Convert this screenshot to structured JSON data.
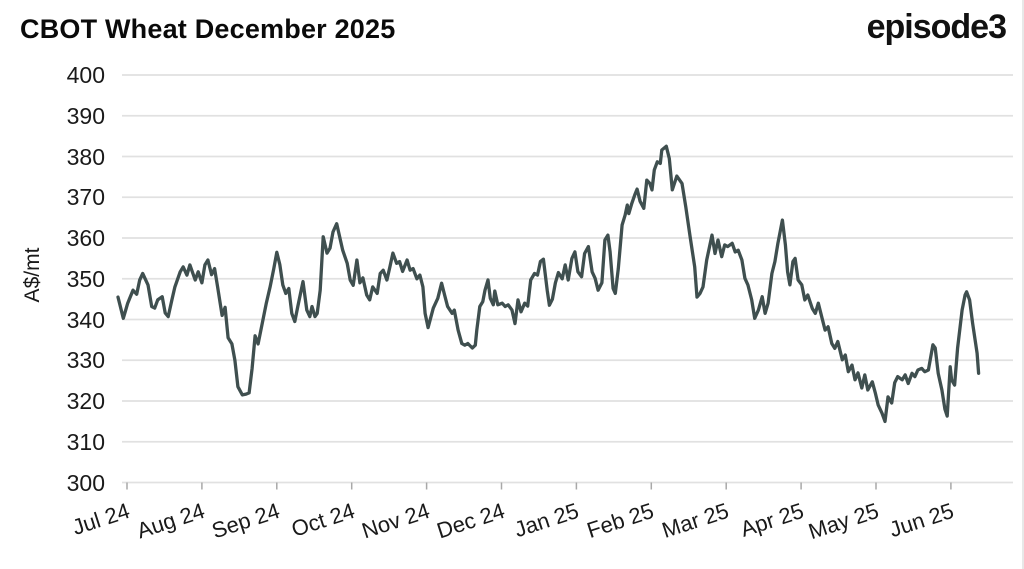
{
  "brand": "episode3",
  "chart_data": {
    "type": "line",
    "title": "CBOT Wheat December 2025",
    "ylabel": "A$/mt",
    "ylim": [
      300,
      400
    ],
    "yticks": [
      400,
      390,
      380,
      370,
      360,
      350,
      340,
      330,
      320,
      310,
      300
    ],
    "x_tick_labels": [
      "Jul 24",
      "Aug 24",
      "Sep 24",
      "Oct 24",
      "Nov 24",
      "Dec 24",
      "Jan 25",
      "Feb 25",
      "Mar 25",
      "Apr 25",
      "May 25",
      "Jun 25"
    ],
    "x_unit": "months from Jul 2024 tick",
    "grid": "horizontal",
    "legend": "none",
    "line_color": "#3f4f4f",
    "grid_color": "#e1e1e1",
    "tick_color": "#a8a8a8",
    "text_color": "#1a1a1a",
    "series": [
      {
        "name": "CBOT Wheat December 2025 (A$/mt)",
        "points": [
          [
            -0.12,
            345.5
          ],
          [
            -0.05,
            340.3
          ],
          [
            0.01,
            344.0
          ],
          [
            0.08,
            347.2
          ],
          [
            0.13,
            346.2
          ],
          [
            0.17,
            349.7
          ],
          [
            0.21,
            351.3
          ],
          [
            0.28,
            348.5
          ],
          [
            0.33,
            343.2
          ],
          [
            0.37,
            342.8
          ],
          [
            0.41,
            344.8
          ],
          [
            0.47,
            345.6
          ],
          [
            0.51,
            341.6
          ],
          [
            0.55,
            340.7
          ],
          [
            0.6,
            344.8
          ],
          [
            0.64,
            348.0
          ],
          [
            0.71,
            351.7
          ],
          [
            0.75,
            352.9
          ],
          [
            0.8,
            350.9
          ],
          [
            0.84,
            353.4
          ],
          [
            0.91,
            349.7
          ],
          [
            0.95,
            351.7
          ],
          [
            1.0,
            349.0
          ],
          [
            1.04,
            353.4
          ],
          [
            1.08,
            354.6
          ],
          [
            1.13,
            351.0
          ],
          [
            1.17,
            352.5
          ],
          [
            1.21,
            348.0
          ],
          [
            1.27,
            341.0
          ],
          [
            1.31,
            343.0
          ],
          [
            1.35,
            335.5
          ],
          [
            1.4,
            334.0
          ],
          [
            1.44,
            330.0
          ],
          [
            1.48,
            323.5
          ],
          [
            1.54,
            321.5
          ],
          [
            1.59,
            321.7
          ],
          [
            1.63,
            322.0
          ],
          [
            1.67,
            328.0
          ],
          [
            1.71,
            336.0
          ],
          [
            1.75,
            334.0
          ],
          [
            1.8,
            338.5
          ],
          [
            1.86,
            344.0
          ],
          [
            1.91,
            348.0
          ],
          [
            1.96,
            352.5
          ],
          [
            2.0,
            356.5
          ],
          [
            2.04,
            353.5
          ],
          [
            2.08,
            348.5
          ],
          [
            2.12,
            346.4
          ],
          [
            2.16,
            347.6
          ],
          [
            2.2,
            341.5
          ],
          [
            2.24,
            339.5
          ],
          [
            2.28,
            343.2
          ],
          [
            2.35,
            349.3
          ],
          [
            2.4,
            342.3
          ],
          [
            2.44,
            340.7
          ],
          [
            2.47,
            343.2
          ],
          [
            2.51,
            340.7
          ],
          [
            2.54,
            341.5
          ],
          [
            2.58,
            347.2
          ],
          [
            2.62,
            360.3
          ],
          [
            2.67,
            356.3
          ],
          [
            2.71,
            357.5
          ],
          [
            2.75,
            361.5
          ],
          [
            2.8,
            363.5
          ],
          [
            2.88,
            357.0
          ],
          [
            2.94,
            353.8
          ],
          [
            2.98,
            349.7
          ],
          [
            3.02,
            348.4
          ],
          [
            3.07,
            354.6
          ],
          [
            3.11,
            349.0
          ],
          [
            3.15,
            350.2
          ],
          [
            3.2,
            346.0
          ],
          [
            3.24,
            344.8
          ],
          [
            3.28,
            348.0
          ],
          [
            3.34,
            346.4
          ],
          [
            3.38,
            351.3
          ],
          [
            3.42,
            352.1
          ],
          [
            3.47,
            349.7
          ],
          [
            3.51,
            352.9
          ],
          [
            3.55,
            356.3
          ],
          [
            3.6,
            353.8
          ],
          [
            3.64,
            354.2
          ],
          [
            3.68,
            351.8
          ],
          [
            3.74,
            354.6
          ],
          [
            3.78,
            352.1
          ],
          [
            3.82,
            352.5
          ],
          [
            3.87,
            350.0
          ],
          [
            3.91,
            350.9
          ],
          [
            3.95,
            348.0
          ],
          [
            3.98,
            341.5
          ],
          [
            4.02,
            338.0
          ],
          [
            4.09,
            342.8
          ],
          [
            4.15,
            345.2
          ],
          [
            4.2,
            348.9
          ],
          [
            4.24,
            346.0
          ],
          [
            4.28,
            343.2
          ],
          [
            4.34,
            341.5
          ],
          [
            4.37,
            342.3
          ],
          [
            4.42,
            337.4
          ],
          [
            4.47,
            334.1
          ],
          [
            4.51,
            333.7
          ],
          [
            4.55,
            334.1
          ],
          [
            4.61,
            333.0
          ],
          [
            4.65,
            333.7
          ],
          [
            4.67,
            337.4
          ],
          [
            4.71,
            343.2
          ],
          [
            4.75,
            344.4
          ],
          [
            4.78,
            347.2
          ],
          [
            4.82,
            349.7
          ],
          [
            4.85,
            345.2
          ],
          [
            4.89,
            343.6
          ],
          [
            4.91,
            347.0
          ],
          [
            4.95,
            343.6
          ],
          [
            5.01,
            344.0
          ],
          [
            5.05,
            343.2
          ],
          [
            5.09,
            343.6
          ],
          [
            5.14,
            342.3
          ],
          [
            5.18,
            339.0
          ],
          [
            5.22,
            344.8
          ],
          [
            5.26,
            341.9
          ],
          [
            5.31,
            344.0
          ],
          [
            5.35,
            343.3
          ],
          [
            5.39,
            349.7
          ],
          [
            5.44,
            351.3
          ],
          [
            5.48,
            350.9
          ],
          [
            5.52,
            354.2
          ],
          [
            5.56,
            354.8
          ],
          [
            5.61,
            347.2
          ],
          [
            5.64,
            343.5
          ],
          [
            5.68,
            345.0
          ],
          [
            5.72,
            349.0
          ],
          [
            5.76,
            351.5
          ],
          [
            5.81,
            350.0
          ],
          [
            5.85,
            353.4
          ],
          [
            5.89,
            349.7
          ],
          [
            5.94,
            355.0
          ],
          [
            5.98,
            356.6
          ],
          [
            6.02,
            351.7
          ],
          [
            6.07,
            350.5
          ],
          [
            6.11,
            356.2
          ],
          [
            6.16,
            357.9
          ],
          [
            6.21,
            351.7
          ],
          [
            6.25,
            350.1
          ],
          [
            6.29,
            347.2
          ],
          [
            6.34,
            349.0
          ],
          [
            6.38,
            359.5
          ],
          [
            6.42,
            360.7
          ],
          [
            6.45,
            356.6
          ],
          [
            6.49,
            347.6
          ],
          [
            6.52,
            346.4
          ],
          [
            6.56,
            352.5
          ],
          [
            6.61,
            363.2
          ],
          [
            6.65,
            365.6
          ],
          [
            6.68,
            368.1
          ],
          [
            6.7,
            366.0
          ],
          [
            6.74,
            368.5
          ],
          [
            6.78,
            370.6
          ],
          [
            6.81,
            372.0
          ],
          [
            6.85,
            369.0
          ],
          [
            6.9,
            367.3
          ],
          [
            6.94,
            374.2
          ],
          [
            6.98,
            373.4
          ],
          [
            7.01,
            371.8
          ],
          [
            7.04,
            376.7
          ],
          [
            7.08,
            378.7
          ],
          [
            7.12,
            378.3
          ],
          [
            7.14,
            381.6
          ],
          [
            7.2,
            382.5
          ],
          [
            7.24,
            379.5
          ],
          [
            7.28,
            371.8
          ],
          [
            7.34,
            375.2
          ],
          [
            7.41,
            373.4
          ],
          [
            7.46,
            367.6
          ],
          [
            7.52,
            360.2
          ],
          [
            7.58,
            352.9
          ],
          [
            7.61,
            345.5
          ],
          [
            7.65,
            346.4
          ],
          [
            7.69,
            348.0
          ],
          [
            7.74,
            354.6
          ],
          [
            7.81,
            360.7
          ],
          [
            7.85,
            356.2
          ],
          [
            7.89,
            359.5
          ],
          [
            7.94,
            355.4
          ],
          [
            7.98,
            358.3
          ],
          [
            8.02,
            357.9
          ],
          [
            8.08,
            358.7
          ],
          [
            8.12,
            356.6
          ],
          [
            8.16,
            357.0
          ],
          [
            8.21,
            354.6
          ],
          [
            8.25,
            350.1
          ],
          [
            8.29,
            348.5
          ],
          [
            8.34,
            344.8
          ],
          [
            8.38,
            340.3
          ],
          [
            8.43,
            342.3
          ],
          [
            8.48,
            345.6
          ],
          [
            8.52,
            341.5
          ],
          [
            8.56,
            344.0
          ],
          [
            8.61,
            351.3
          ],
          [
            8.65,
            354.2
          ],
          [
            8.69,
            358.7
          ],
          [
            8.75,
            364.4
          ],
          [
            8.79,
            358.3
          ],
          [
            8.82,
            351.7
          ],
          [
            8.85,
            348.5
          ],
          [
            8.89,
            354.2
          ],
          [
            8.92,
            355.0
          ],
          [
            8.96,
            349.7
          ],
          [
            9.01,
            348.5
          ],
          [
            9.05,
            344.8
          ],
          [
            9.09,
            346.0
          ],
          [
            9.15,
            342.7
          ],
          [
            9.19,
            341.5
          ],
          [
            9.23,
            344.0
          ],
          [
            9.28,
            340.3
          ],
          [
            9.32,
            337.4
          ],
          [
            9.36,
            338.2
          ],
          [
            9.41,
            334.1
          ],
          [
            9.45,
            332.9
          ],
          [
            9.49,
            334.6
          ],
          [
            9.55,
            330.1
          ],
          [
            9.59,
            331.3
          ],
          [
            9.63,
            327.2
          ],
          [
            9.68,
            328.8
          ],
          [
            9.72,
            325.2
          ],
          [
            9.76,
            326.9
          ],
          [
            9.81,
            323.2
          ],
          [
            9.85,
            326.4
          ],
          [
            9.89,
            322.7
          ],
          [
            9.95,
            324.7
          ],
          [
            9.99,
            322.0
          ],
          [
            10.03,
            319.0
          ],
          [
            10.08,
            317.0
          ],
          [
            10.12,
            315.0
          ],
          [
            10.16,
            321.0
          ],
          [
            10.21,
            319.5
          ],
          [
            10.25,
            324.5
          ],
          [
            10.29,
            326.0
          ],
          [
            10.35,
            325.2
          ],
          [
            10.39,
            326.4
          ],
          [
            10.43,
            324.3
          ],
          [
            10.48,
            326.8
          ],
          [
            10.52,
            326.0
          ],
          [
            10.56,
            327.6
          ],
          [
            10.61,
            328.0
          ],
          [
            10.65,
            327.2
          ],
          [
            10.7,
            327.6
          ],
          [
            10.76,
            333.8
          ],
          [
            10.79,
            333.0
          ],
          [
            10.83,
            326.8
          ],
          [
            10.88,
            322.7
          ],
          [
            10.92,
            318.0
          ],
          [
            10.95,
            316.3
          ],
          [
            10.99,
            328.4
          ],
          [
            11.01,
            325.2
          ],
          [
            11.05,
            323.9
          ],
          [
            11.09,
            333.0
          ],
          [
            11.15,
            342.3
          ],
          [
            11.19,
            346.0
          ],
          [
            11.21,
            346.8
          ],
          [
            11.25,
            344.8
          ],
          [
            11.29,
            339.1
          ],
          [
            11.35,
            331.7
          ],
          [
            11.37,
            326.8
          ]
        ]
      }
    ]
  }
}
